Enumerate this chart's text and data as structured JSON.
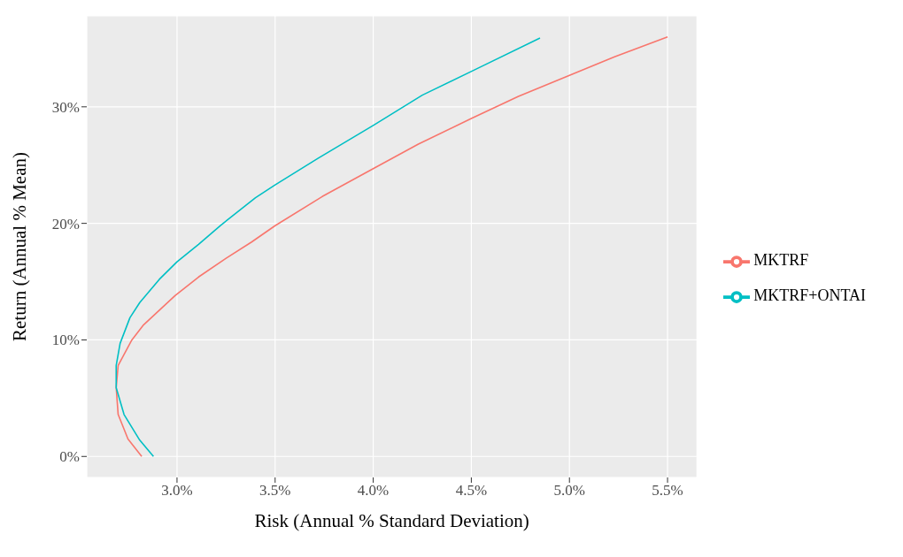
{
  "chart_data": {
    "type": "line",
    "xlabel": "Risk (Annual % Standard Deviation)",
    "ylabel": "Return (Annual % Mean)",
    "xlim": [
      2.54,
      5.65
    ],
    "ylim": [
      -1.8,
      37.8
    ],
    "xticks": [
      {
        "value": 3,
        "label": "3.0%"
      },
      {
        "value": 3.5,
        "label": "3.5%"
      },
      {
        "value": 4,
        "label": "4.0%"
      },
      {
        "value": 4.5,
        "label": "4.5%"
      },
      {
        "value": 5,
        "label": "5.0%"
      },
      {
        "value": 5.5,
        "label": "5.5%"
      }
    ],
    "yticks": [
      {
        "value": 0,
        "label": "0%"
      },
      {
        "value": 10,
        "label": "10%"
      },
      {
        "value": 20,
        "label": "20%"
      },
      {
        "value": 30,
        "label": "30%"
      }
    ],
    "grid": true,
    "legend": "right",
    "series": [
      {
        "name": "MKTRF",
        "color": "#f8766d",
        "x": [
          2.82,
          2.75,
          2.7,
          2.69,
          2.7,
          2.77,
          2.83,
          2.99,
          3.11,
          3.25,
          3.38,
          3.5,
          3.74,
          4.0,
          4.23,
          4.5,
          4.74,
          5.0,
          5.23,
          5.5
        ],
        "values": [
          0,
          1.5,
          3.6,
          5.9,
          7.8,
          10.0,
          11.3,
          13.8,
          15.4,
          17.0,
          18.4,
          19.8,
          22.3,
          24.7,
          26.8,
          29.0,
          30.9,
          32.7,
          34.3,
          36.0
        ]
      },
      {
        "name": "MKTRF+ONTAI",
        "color": "#00bfc4",
        "x": [
          2.88,
          2.81,
          2.73,
          2.69,
          2.69,
          2.71,
          2.76,
          2.81,
          2.91,
          3.0,
          3.11,
          3.22,
          3.4,
          3.5,
          3.72,
          4.0,
          4.25,
          4.52,
          4.85
        ],
        "values": [
          0,
          1.4,
          3.6,
          5.9,
          7.8,
          9.7,
          11.9,
          13.2,
          15.2,
          16.7,
          18.2,
          19.8,
          22.2,
          23.3,
          25.6,
          28.4,
          31.0,
          33.2,
          35.9
        ]
      }
    ]
  }
}
